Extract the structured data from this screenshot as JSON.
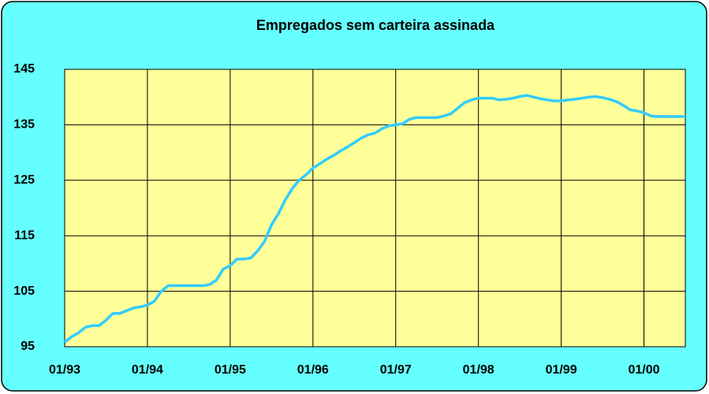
{
  "chart_data": {
    "type": "line",
    "title": "Empregados sem carteira assinada",
    "categories": [
      "01/93",
      null,
      null,
      null,
      null,
      null,
      null,
      null,
      null,
      null,
      null,
      null,
      "01/94",
      null,
      null,
      null,
      null,
      null,
      null,
      null,
      null,
      null,
      null,
      null,
      "01/95",
      null,
      null,
      null,
      null,
      null,
      null,
      null,
      null,
      null,
      null,
      null,
      "01/96",
      null,
      null,
      null,
      null,
      null,
      null,
      null,
      null,
      null,
      null,
      null,
      "01/97",
      null,
      null,
      null,
      null,
      null,
      null,
      null,
      null,
      null,
      null,
      null,
      "01/98",
      null,
      null,
      null,
      null,
      null,
      null,
      null,
      null,
      null,
      null,
      null,
      "01/99",
      null,
      null,
      null,
      null,
      null,
      null,
      null,
      null,
      null,
      null,
      null,
      "01/00",
      null,
      null,
      null,
      null,
      null,
      null
    ],
    "values": [
      95.8,
      96.8,
      97.5,
      98.5,
      98.8,
      98.8,
      99.8,
      101,
      101,
      101.5,
      102,
      102.2,
      102.5,
      103.2,
      105,
      106,
      106,
      106,
      106,
      106,
      106,
      106.2,
      107,
      109,
      109.6,
      110.8,
      110.8,
      111,
      112.3,
      114,
      117,
      119,
      121.5,
      123.5,
      125,
      126,
      127.2,
      128,
      128.8,
      129.5,
      130.3,
      131,
      131.8,
      132.6,
      133.2,
      133.5,
      134.3,
      134.8,
      135,
      135.2,
      136,
      136.3,
      136.3,
      136.3,
      136.3,
      136.6,
      137,
      138,
      139,
      139.5,
      139.8,
      139.8,
      139.8,
      139.5,
      139.6,
      139.8,
      140.1,
      140.3,
      140,
      139.7,
      139.5,
      139.3,
      139.3,
      139.5,
      139.6,
      139.8,
      140,
      140.1,
      139.9,
      139.6,
      139.2,
      138.5,
      137.7,
      137.5,
      137.2,
      136.6,
      136.5,
      136.5,
      136.5,
      136.5,
      136.5
    ],
    "color": "#33ccff",
    "ylim": [
      95,
      145
    ],
    "yticks": [
      95,
      105,
      115,
      125,
      135,
      145
    ],
    "grid": true
  }
}
